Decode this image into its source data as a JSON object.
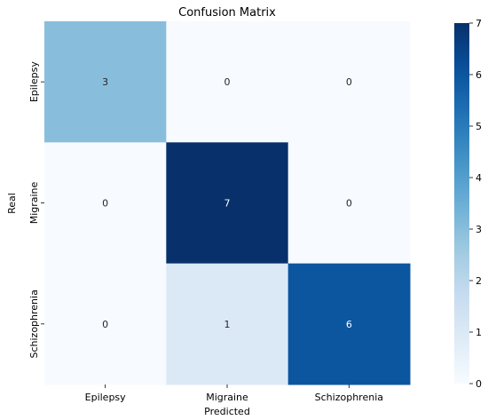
{
  "chart_data": {
    "type": "heatmap",
    "title": "Confusion Matrix",
    "xlabel": "Predicted",
    "ylabel": "Real",
    "x_categories": [
      "Epilepsy",
      "Migraine",
      "Schizophrenia"
    ],
    "y_categories": [
      "Epilepsy",
      "Migraine",
      "Schizophrenia"
    ],
    "values": [
      [
        3,
        0,
        0
      ],
      [
        0,
        7,
        0
      ],
      [
        0,
        1,
        6
      ]
    ],
    "colorbar": {
      "range": [
        0,
        7
      ],
      "ticks": [
        0,
        1,
        2,
        3,
        4,
        5,
        6,
        7
      ]
    },
    "colormap": "Blues",
    "grid": false,
    "legend": "colorbar-right"
  }
}
